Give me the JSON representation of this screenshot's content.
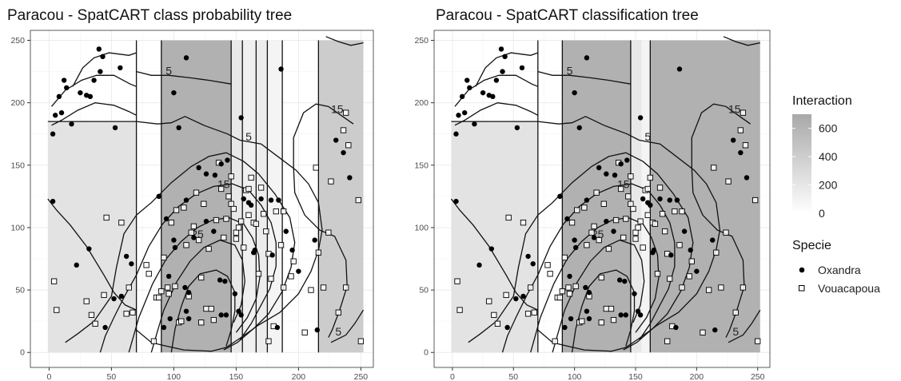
{
  "chart_data": [
    {
      "type": "scatter",
      "title": "Paracou - SpatCART class probability tree",
      "xlim": [
        -15,
        260
      ],
      "ylim": [
        -12,
        258
      ],
      "x_ticks": [
        0,
        50,
        100,
        150,
        200,
        250
      ],
      "y_ticks": [
        0,
        50,
        100,
        150,
        200,
        250
      ],
      "grid": true,
      "regions": [
        {
          "x0": -1,
          "x1": 70,
          "y0": 0,
          "y1": 185,
          "interaction": 180
        },
        {
          "x0": 90,
          "x1": 146,
          "y0": 0,
          "y1": 250,
          "interaction": 620
        },
        {
          "x0": 146,
          "x1": 155,
          "y0": 0,
          "y1": 250,
          "interaction": 130
        },
        {
          "x0": 155,
          "x1": 166,
          "y0": 0,
          "y1": 250,
          "interaction": 60
        },
        {
          "x0": 166,
          "x1": 175,
          "y0": 0,
          "y1": 250,
          "interaction": 100
        },
        {
          "x0": 175,
          "x1": 187,
          "y0": 0,
          "y1": 250,
          "interaction": 30
        },
        {
          "x0": 216,
          "x1": 252,
          "y0": 0,
          "y1": 250,
          "interaction": 380
        }
      ],
      "split_lines": [
        {
          "x": [
            70,
            70
          ],
          "y": [
            0,
            250
          ]
        },
        {
          "x": [
            -1,
            70
          ],
          "y": [
            185,
            185
          ]
        },
        {
          "x": [
            90,
            90
          ],
          "y": [
            0,
            250
          ]
        },
        {
          "x": [
            146,
            146
          ],
          "y": [
            0,
            250
          ]
        },
        {
          "x": [
            155,
            155
          ],
          "y": [
            0,
            250
          ]
        },
        {
          "x": [
            166,
            166
          ],
          "y": [
            0,
            250
          ]
        },
        {
          "x": [
            175,
            175
          ],
          "y": [
            0,
            250
          ]
        },
        {
          "x": [
            187,
            187
          ],
          "y": [
            0,
            250
          ]
        },
        {
          "x": [
            216,
            216
          ],
          "y": [
            0,
            250
          ]
        }
      ]
    },
    {
      "type": "scatter",
      "title": "Paracou - SpatCART classification tree",
      "xlim": [
        -15,
        260
      ],
      "ylim": [
        -12,
        258
      ],
      "x_ticks": [
        0,
        50,
        100,
        150,
        200,
        250
      ],
      "y_ticks": [
        0,
        50,
        100,
        150,
        200,
        250
      ],
      "grid": true,
      "regions": [
        {
          "x0": -1,
          "x1": 70,
          "y0": 0,
          "y1": 185,
          "interaction": 180
        },
        {
          "x0": 90,
          "x1": 146,
          "y0": 0,
          "y1": 250,
          "interaction": 620
        },
        {
          "x0": 146,
          "x1": 155,
          "y0": 0,
          "y1": 250,
          "interaction": 130
        },
        {
          "x0": 155,
          "x1": 162,
          "y0": 0,
          "y1": 250,
          "interaction": 30
        },
        {
          "x0": 162,
          "x1": 252,
          "y0": 0,
          "y1": 250,
          "interaction": 620
        }
      ],
      "split_lines": [
        {
          "x": [
            70,
            70
          ],
          "y": [
            0,
            250
          ]
        },
        {
          "x": [
            -1,
            70
          ],
          "y": [
            185,
            185
          ]
        },
        {
          "x": [
            90,
            90
          ],
          "y": [
            0,
            250
          ]
        },
        {
          "x": [
            146,
            146
          ],
          "y": [
            0,
            250
          ]
        },
        {
          "x": [
            162,
            162
          ],
          "y": [
            0,
            250
          ]
        }
      ]
    }
  ],
  "shared": {
    "points": {
      "Oxandra": [
        [
          3,
          175
        ],
        [
          5,
          190
        ],
        [
          8,
          205
        ],
        [
          10,
          192
        ],
        [
          12,
          218
        ],
        [
          14,
          212
        ],
        [
          18,
          183
        ],
        [
          25,
          208
        ],
        [
          30,
          206
        ],
        [
          33,
          205
        ],
        [
          36,
          218
        ],
        [
          40,
          243
        ],
        [
          41,
          225
        ],
        [
          43,
          237
        ],
        [
          53,
          180
        ],
        [
          57,
          228
        ],
        [
          3,
          121
        ],
        [
          22,
          70
        ],
        [
          32,
          83
        ],
        [
          45,
          20
        ],
        [
          52,
          43
        ],
        [
          58,
          45
        ],
        [
          62,
          77
        ],
        [
          66,
          71
        ],
        [
          88,
          125
        ],
        [
          94,
          107
        ],
        [
          96,
          61
        ],
        [
          100,
          90
        ],
        [
          101,
          84
        ],
        [
          92,
          20
        ],
        [
          97,
          27
        ],
        [
          109,
          52
        ],
        [
          112,
          48
        ],
        [
          110,
          236
        ],
        [
          100,
          208
        ],
        [
          104,
          180
        ],
        [
          110,
          122
        ],
        [
          120,
          148
        ],
        [
          126,
          143
        ],
        [
          133,
          142
        ],
        [
          138,
          151
        ],
        [
          143,
          154
        ],
        [
          116,
          92
        ],
        [
          126,
          105
        ],
        [
          132,
          97
        ],
        [
          137,
          58
        ],
        [
          141,
          57
        ],
        [
          110,
          33
        ],
        [
          112,
          27
        ],
        [
          138,
          30
        ],
        [
          142,
          30
        ],
        [
          154,
          188
        ],
        [
          156,
          123
        ],
        [
          160,
          120
        ],
        [
          162,
          118
        ],
        [
          165,
          82
        ],
        [
          164,
          80
        ],
        [
          170,
          123
        ],
        [
          178,
          122
        ],
        [
          179,
          78
        ],
        [
          184,
          122
        ],
        [
          149,
          47
        ],
        [
          152,
          33
        ],
        [
          154,
          30
        ],
        [
          183,
          20
        ],
        [
          186,
          227
        ],
        [
          190,
          97
        ],
        [
          195,
          82
        ],
        [
          200,
          65
        ],
        [
          213,
          90
        ],
        [
          215,
          18
        ],
        [
          230,
          170
        ],
        [
          236,
          160
        ],
        [
          241,
          140
        ]
      ],
      "Vouacapoua": [
        [
          4,
          57
        ],
        [
          6,
          34
        ],
        [
          30,
          41
        ],
        [
          34,
          30
        ],
        [
          37,
          23
        ],
        [
          44,
          46
        ],
        [
          46,
          108
        ],
        [
          58,
          104
        ],
        [
          62,
          31
        ],
        [
          64,
          52
        ],
        [
          67,
          32
        ],
        [
          78,
          70
        ],
        [
          80,
          63
        ],
        [
          84,
          9
        ],
        [
          86,
          44
        ],
        [
          88,
          44
        ],
        [
          90,
          49
        ],
        [
          92,
          76
        ],
        [
          95,
          52
        ],
        [
          96,
          47
        ],
        [
          98,
          104
        ],
        [
          101,
          53
        ],
        [
          102,
          114
        ],
        [
          104,
          24
        ],
        [
          106,
          25
        ],
        [
          108,
          116
        ],
        [
          110,
          86
        ],
        [
          112,
          45
        ],
        [
          114,
          96
        ],
        [
          116,
          101
        ],
        [
          118,
          128
        ],
        [
          120,
          90
        ],
        [
          122,
          60
        ],
        [
          122,
          24
        ],
        [
          124,
          119
        ],
        [
          126,
          35
        ],
        [
          128,
          83
        ],
        [
          130,
          35
        ],
        [
          132,
          26
        ],
        [
          134,
          106
        ],
        [
          136,
          152
        ],
        [
          138,
          131
        ],
        [
          140,
          92
        ],
        [
          142,
          107
        ],
        [
          144,
          125
        ],
        [
          146,
          119
        ],
        [
          146,
          141
        ],
        [
          148,
          115
        ],
        [
          150,
          96
        ],
        [
          150,
          91
        ],
        [
          152,
          100
        ],
        [
          154,
          105
        ],
        [
          156,
          84
        ],
        [
          158,
          130
        ],
        [
          160,
          131
        ],
        [
          160,
          110
        ],
        [
          162,
          140
        ],
        [
          164,
          104
        ],
        [
          166,
          103
        ],
        [
          168,
          63
        ],
        [
          170,
          132
        ],
        [
          172,
          111
        ],
        [
          174,
          97
        ],
        [
          176,
          9
        ],
        [
          176,
          79
        ],
        [
          178,
          59
        ],
        [
          180,
          21
        ],
        [
          182,
          113
        ],
        [
          186,
          86
        ],
        [
          188,
          113
        ],
        [
          188,
          52
        ],
        [
          194,
          61
        ],
        [
          196,
          73
        ],
        [
          205,
          16
        ],
        [
          210,
          50
        ],
        [
          214,
          148
        ],
        [
          216,
          80
        ],
        [
          220,
          52
        ],
        [
          224,
          96
        ],
        [
          226,
          137
        ],
        [
          232,
          32
        ],
        [
          236,
          178
        ],
        [
          238,
          192
        ],
        [
          238,
          52
        ],
        [
          240,
          166
        ],
        [
          248,
          122
        ],
        [
          250,
          9
        ]
      ]
    },
    "contour_labels": [
      {
        "text": "5",
        "x": 96,
        "y": 225
      },
      {
        "text": "5",
        "x": 160,
        "y": 172
      },
      {
        "text": "15",
        "x": 140,
        "y": 134
      },
      {
        "text": "25",
        "x": 119,
        "y": 94
      },
      {
        "text": "15",
        "x": 231,
        "y": 194
      },
      {
        "text": "5",
        "x": 232,
        "y": 16
      }
    ]
  },
  "legend": {
    "interaction_title": "Interaction",
    "interaction_ticks": [
      "600",
      "400",
      "200",
      "0"
    ],
    "specie_title": "Specie",
    "species": [
      "Oxandra",
      "Vouacapoua"
    ]
  },
  "colors": {
    "panel_bg": "#ffffff",
    "grid": "#ebebeb",
    "axis_border": "#333333",
    "fill_low": "#f7f7f7",
    "fill_high": "#ababab",
    "point": "#000000"
  }
}
